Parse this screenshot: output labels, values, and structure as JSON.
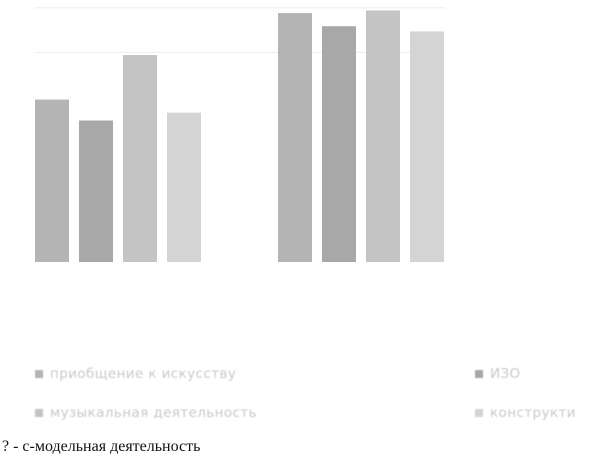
{
  "chart_data": {
    "type": "bar",
    "title": "",
    "xlabel": "",
    "ylabel": "",
    "ylim": [
      0,
      100
    ],
    "grid": true,
    "legend_position": "bottom",
    "series": [
      {
        "name": "приобщение к искусству",
        "color": "#b4b4b4",
        "values": [
          62,
          95
        ]
      },
      {
        "name": "ИЗО",
        "color": "#a8a8a8",
        "values": [
          54,
          90
        ]
      },
      {
        "name": "музыкальная деятельность",
        "color": "#c4c4c4",
        "values": [
          79,
          96
        ]
      },
      {
        "name": "конструкти",
        "color": "#d4d4d4",
        "values": [
          57,
          88
        ]
      }
    ],
    "groups": 2
  },
  "caption": "? - с-модельная деятельность"
}
